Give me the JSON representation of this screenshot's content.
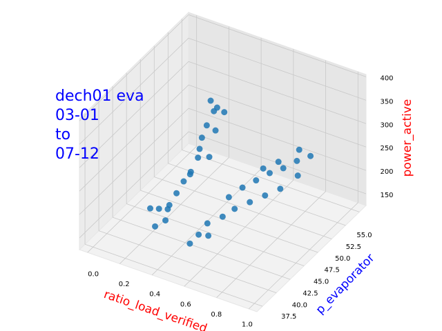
{
  "chart_data": {
    "type": "scatter3d",
    "title": [
      "dech01 eva",
      "03-01",
      "to",
      "07-12"
    ],
    "title_color": "blue",
    "xlabel": "ratio_load_verified",
    "xlabel_color": "red",
    "ylabel": "p_evaporator",
    "ylabel_color": "blue",
    "zlabel": "power_active",
    "zlabel_color": "red",
    "xlim": [
      -0.05,
      1.05
    ],
    "ylim": [
      36.5,
      56.2
    ],
    "zlim": [
      125,
      405
    ],
    "xticks": [
      {
        "value": 0,
        "label": "0.0"
      },
      0.2,
      0.4,
      0.6,
      0.8,
      {
        "value": 1,
        "label": "1.0"
      }
    ],
    "yticks": [
      37.5,
      {
        "value": 40,
        "label": "40.0"
      },
      42.5,
      {
        "value": 45,
        "label": "45.0"
      },
      47.5,
      {
        "value": 50,
        "label": "50.0"
      },
      52.5,
      {
        "value": 55,
        "label": "55.0"
      }
    ],
    "zticks": [
      150,
      200,
      250,
      300,
      350,
      400
    ],
    "grid": true,
    "series": [
      {
        "color": "#1f77b4",
        "x": [
          0.3,
          0.32,
          0.31,
          0.33,
          0.3,
          0.29,
          0.28,
          0.27,
          0.26,
          0.25,
          0.24,
          0.22,
          0.2,
          0.35,
          0.34,
          0.28,
          0.31,
          0.26,
          0.23,
          0.36,
          0.55,
          0.6,
          0.65,
          0.7,
          0.75,
          0.8,
          0.85,
          0.58,
          0.62,
          0.68,
          0.74,
          0.8,
          0.52,
          0.5,
          0.48,
          0.56,
          0.72,
          0.66,
          0.84,
          0.78
        ],
        "y": [
          50,
          50,
          49,
          50,
          48,
          48,
          47,
          46,
          45,
          44,
          44,
          43,
          42,
          51,
          50,
          49,
          46,
          43,
          42,
          48,
          46,
          47,
          48,
          49,
          50,
          51,
          52,
          44,
          45,
          46,
          47,
          48,
          43,
          42,
          41,
          42,
          50,
          49,
          50,
          52
        ],
        "z": [
          330,
          310,
          290,
          270,
          250,
          230,
          210,
          200,
          185,
          170,
          160,
          170,
          180,
          300,
          320,
          260,
          220,
          150,
          145,
          240,
          200,
          215,
          225,
          235,
          240,
          250,
          255,
          185,
          195,
          205,
          215,
          225,
          175,
          160,
          150,
          165,
          250,
          240,
          235,
          260
        ]
      }
    ]
  }
}
